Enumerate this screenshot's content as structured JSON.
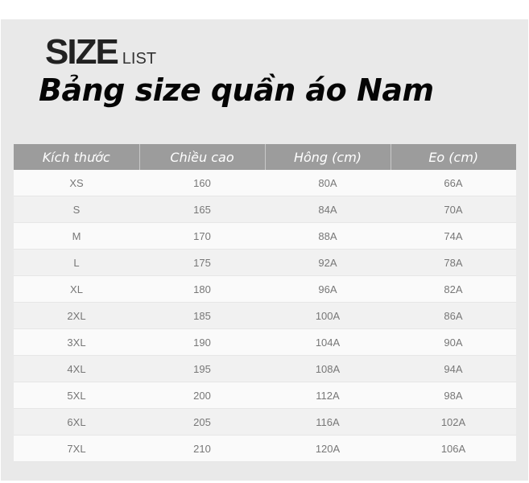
{
  "brand": {
    "big": "SIZE",
    "small": "LIST"
  },
  "title": "Bảng size quần áo Nam",
  "table": {
    "headers": [
      "Kích thước",
      "Chiều cao",
      "Hông (cm)",
      "Eo (cm)"
    ],
    "rows": [
      [
        "XS",
        "160",
        "80A",
        "66A"
      ],
      [
        "S",
        "165",
        "84A",
        "70A"
      ],
      [
        "M",
        "170",
        "88A",
        "74A"
      ],
      [
        "L",
        "175",
        "92A",
        "78A"
      ],
      [
        "XL",
        "180",
        "96A",
        "82A"
      ],
      [
        "2XL",
        "185",
        "100A",
        "86A"
      ],
      [
        "3XL",
        "190",
        "104A",
        "90A"
      ],
      [
        "4XL",
        "195",
        "108A",
        "94A"
      ],
      [
        "5XL",
        "200",
        "112A",
        "98A"
      ],
      [
        "6XL",
        "205",
        "116A",
        "102A"
      ],
      [
        "7XL",
        "210",
        "120A",
        "106A"
      ]
    ]
  },
  "colors": {
    "header_bg": "#9c9c9c",
    "panel_bg": "#e9e9e9",
    "cell_text": "#777777"
  }
}
